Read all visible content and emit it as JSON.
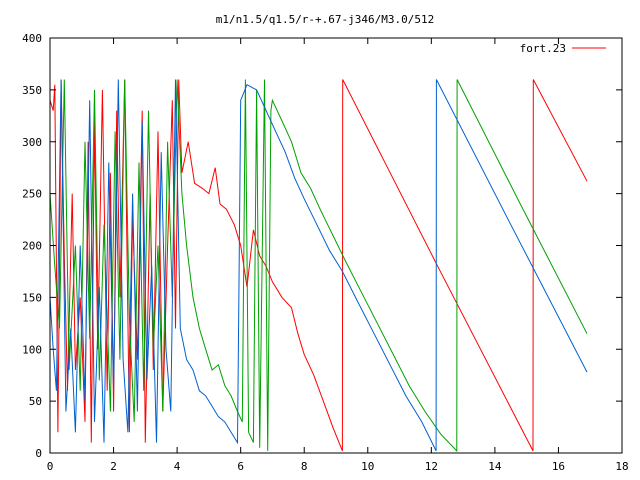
{
  "chart_data": {
    "type": "line",
    "title": "m1/n1.5/q1.5/r-+.67-j346/M3.0/512",
    "xlabel": "",
    "ylabel": "",
    "xlim": [
      0,
      18
    ],
    "ylim": [
      0,
      400
    ],
    "xticks": [
      "0",
      "2",
      "4",
      "6",
      "8",
      "10",
      "12",
      "14",
      "16",
      "18"
    ],
    "yticks": [
      "0",
      "50",
      "100",
      "150",
      "200",
      "250",
      "300",
      "350",
      "400"
    ],
    "grid": false,
    "legend_position": "top-right",
    "legend": [
      {
        "label": "fort.23",
        "color": "#ff0000"
      }
    ],
    "series": [
      {
        "name": "fort.23",
        "color": "#ff0000",
        "points": [
          [
            0.0,
            340
          ],
          [
            0.1,
            330
          ],
          [
            0.15,
            355
          ],
          [
            0.25,
            20
          ],
          [
            0.3,
            180
          ],
          [
            0.35,
            360
          ],
          [
            0.45,
            190
          ],
          [
            0.55,
            60
          ],
          [
            0.7,
            250
          ],
          [
            0.8,
            80
          ],
          [
            0.95,
            150
          ],
          [
            1.1,
            30
          ],
          [
            1.2,
            300
          ],
          [
            1.3,
            10
          ],
          [
            1.4,
            320
          ],
          [
            1.5,
            100
          ],
          [
            1.65,
            350
          ],
          [
            1.8,
            60
          ],
          [
            1.9,
            270
          ],
          [
            2.0,
            40
          ],
          [
            2.1,
            330
          ],
          [
            2.2,
            150
          ],
          [
            2.35,
            360
          ],
          [
            2.5,
            20
          ],
          [
            2.6,
            230
          ],
          [
            2.75,
            90
          ],
          [
            2.9,
            330
          ],
          [
            3.0,
            10
          ],
          [
            3.15,
            250
          ],
          [
            3.25,
            80
          ],
          [
            3.4,
            310
          ],
          [
            3.55,
            40
          ],
          [
            3.7,
            200
          ],
          [
            3.85,
            340
          ],
          [
            3.95,
            120
          ],
          [
            4.05,
            360
          ],
          [
            4.15,
            270
          ],
          [
            4.35,
            300
          ],
          [
            4.55,
            260
          ],
          [
            4.8,
            255
          ],
          [
            5.0,
            250
          ],
          [
            5.2,
            275
          ],
          [
            5.35,
            240
          ],
          [
            5.55,
            235
          ],
          [
            5.8,
            220
          ],
          [
            6.0,
            200
          ],
          [
            6.2,
            160
          ],
          [
            6.4,
            215
          ],
          [
            6.6,
            190
          ],
          [
            6.8,
            180
          ],
          [
            7.0,
            165
          ],
          [
            7.3,
            150
          ],
          [
            7.6,
            140
          ],
          [
            7.8,
            115
          ],
          [
            8.0,
            95
          ],
          [
            8.3,
            75
          ],
          [
            8.6,
            50
          ],
          [
            8.9,
            25
          ],
          [
            9.2,
            2
          ],
          [
            9.21,
            360
          ],
          [
            12.2,
            180
          ],
          [
            15.2,
            2
          ],
          [
            15.21,
            360
          ],
          [
            16.9,
            262
          ]
        ]
      },
      {
        "name": "",
        "color": "#00a000",
        "points": [
          [
            0.0,
            250
          ],
          [
            0.15,
            180
          ],
          [
            0.3,
            120
          ],
          [
            0.45,
            360
          ],
          [
            0.6,
            80
          ],
          [
            0.8,
            200
          ],
          [
            0.95,
            60
          ],
          [
            1.1,
            300
          ],
          [
            1.25,
            110
          ],
          [
            1.4,
            350
          ],
          [
            1.55,
            70
          ],
          [
            1.7,
            220
          ],
          [
            1.9,
            40
          ],
          [
            2.05,
            310
          ],
          [
            2.2,
            90
          ],
          [
            2.35,
            360
          ],
          [
            2.5,
            130
          ],
          [
            2.65,
            30
          ],
          [
            2.8,
            280
          ],
          [
            2.95,
            60
          ],
          [
            3.1,
            330
          ],
          [
            3.25,
            100
          ],
          [
            3.4,
            200
          ],
          [
            3.55,
            40
          ],
          [
            3.7,
            300
          ],
          [
            3.85,
            150
          ],
          [
            4.0,
            360
          ],
          [
            4.15,
            250
          ],
          [
            4.3,
            200
          ],
          [
            4.5,
            150
          ],
          [
            4.7,
            120
          ],
          [
            4.9,
            100
          ],
          [
            5.1,
            80
          ],
          [
            5.3,
            85
          ],
          [
            5.5,
            65
          ],
          [
            5.7,
            55
          ],
          [
            5.9,
            40
          ],
          [
            6.05,
            30
          ],
          [
            6.15,
            360
          ],
          [
            6.25,
            20
          ],
          [
            6.4,
            10
          ],
          [
            6.5,
            350
          ],
          [
            6.6,
            5
          ],
          [
            6.75,
            360
          ],
          [
            6.85,
            2
          ],
          [
            6.95,
            330
          ],
          [
            7.0,
            340
          ],
          [
            7.3,
            320
          ],
          [
            7.6,
            300
          ],
          [
            7.9,
            270
          ],
          [
            8.2,
            255
          ],
          [
            8.5,
            235
          ],
          [
            8.9,
            210
          ],
          [
            9.3,
            185
          ],
          [
            9.8,
            155
          ],
          [
            10.3,
            125
          ],
          [
            10.8,
            95
          ],
          [
            11.3,
            65
          ],
          [
            11.8,
            40
          ],
          [
            12.3,
            18
          ],
          [
            12.8,
            2
          ],
          [
            12.81,
            360
          ],
          [
            14.8,
            240
          ],
          [
            16.9,
            115
          ]
        ]
      },
      {
        "name": "",
        "color": "#0060d0",
        "points": [
          [
            0.0,
            150
          ],
          [
            0.1,
            100
          ],
          [
            0.2,
            60
          ],
          [
            0.35,
            360
          ],
          [
            0.5,
            40
          ],
          [
            0.65,
            120
          ],
          [
            0.8,
            20
          ],
          [
            0.95,
            200
          ],
          [
            1.1,
            50
          ],
          [
            1.25,
            340
          ],
          [
            1.4,
            30
          ],
          [
            1.55,
            160
          ],
          [
            1.7,
            10
          ],
          [
            1.85,
            280
          ],
          [
            2.0,
            60
          ],
          [
            2.15,
            360
          ],
          [
            2.3,
            90
          ],
          [
            2.45,
            20
          ],
          [
            2.6,
            250
          ],
          [
            2.75,
            40
          ],
          [
            2.9,
            320
          ],
          [
            3.05,
            70
          ],
          [
            3.2,
            180
          ],
          [
            3.35,
            10
          ],
          [
            3.5,
            290
          ],
          [
            3.65,
            100
          ],
          [
            3.8,
            40
          ],
          [
            3.95,
            360
          ],
          [
            4.1,
            120
          ],
          [
            4.3,
            90
          ],
          [
            4.5,
            80
          ],
          [
            4.7,
            60
          ],
          [
            4.9,
            55
          ],
          [
            5.1,
            45
          ],
          [
            5.3,
            35
          ],
          [
            5.5,
            30
          ],
          [
            5.7,
            20
          ],
          [
            5.9,
            10
          ],
          [
            6.0,
            340
          ],
          [
            6.2,
            355
          ],
          [
            6.5,
            350
          ],
          [
            6.8,
            330
          ],
          [
            7.1,
            310
          ],
          [
            7.4,
            290
          ],
          [
            7.7,
            265
          ],
          [
            8.0,
            245
          ],
          [
            8.4,
            220
          ],
          [
            8.8,
            195
          ],
          [
            9.2,
            175
          ],
          [
            9.7,
            145
          ],
          [
            10.2,
            115
          ],
          [
            10.7,
            85
          ],
          [
            11.2,
            55
          ],
          [
            11.7,
            30
          ],
          [
            12.15,
            2
          ],
          [
            12.16,
            360
          ],
          [
            14.5,
            220
          ],
          [
            16.9,
            78
          ]
        ]
      }
    ]
  }
}
